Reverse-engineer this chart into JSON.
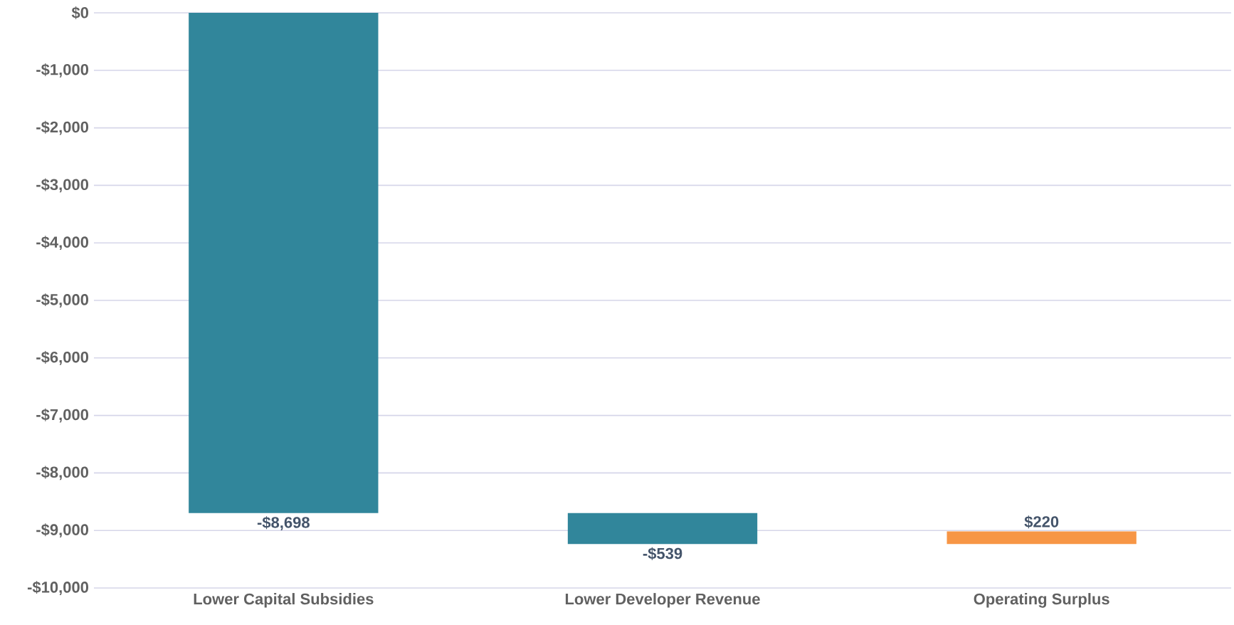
{
  "chart_data": {
    "type": "bar",
    "categories": [
      "Lower Capital Subsidies",
      "Lower Developer Revenue",
      "Operating Surplus"
    ],
    "values": [
      -8698,
      -539,
      220
    ],
    "base": [
      0,
      -8698,
      -9237
    ],
    "colors": [
      "#31869b",
      "#31869b",
      "#f79646"
    ],
    "value_labels": [
      "-$8,698",
      "-$539",
      "$220"
    ],
    "ylim": [
      -10000,
      0
    ],
    "yticks": [
      {
        "value": -10000,
        "label": "-$10,000"
      },
      {
        "value": -9000,
        "label": "-$9,000"
      },
      {
        "value": -8000,
        "label": "-$8,000"
      },
      {
        "value": -7000,
        "label": "-$7,000"
      },
      {
        "value": -6000,
        "label": "-$6,000"
      },
      {
        "value": -5000,
        "label": "-$5,000"
      },
      {
        "value": -4000,
        "label": "-$4,000"
      },
      {
        "value": -3000,
        "label": "-$3,000"
      },
      {
        "value": -2000,
        "label": "-$2,000"
      },
      {
        "value": -1000,
        "label": "-$1,000"
      },
      {
        "value": 0,
        "label": "$0"
      }
    ],
    "grid": "y"
  }
}
